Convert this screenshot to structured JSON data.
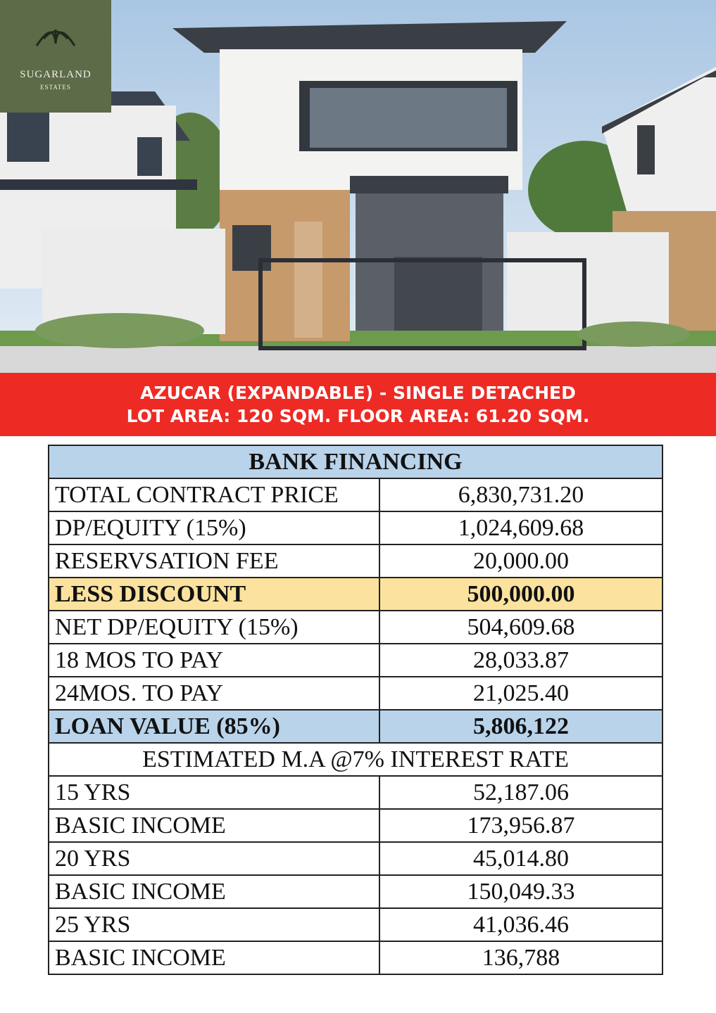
{
  "logo": {
    "name": "SUGARLAND",
    "tagline": "ESTATES"
  },
  "banner": {
    "line1": "AZUCAR (EXPANDABLE) - SINGLE DETACHED",
    "line2": "LOT AREA: 120 SQM. FLOOR AREA: 61.20 SQM."
  },
  "table": {
    "title": "BANK FINANCING",
    "rows": [
      [
        "TOTAL CONTRACT PRICE",
        "6,830,731.20"
      ],
      [
        "DP/EQUITY (15%)",
        "1,024,609.68"
      ],
      [
        "RESERVSATION FEE",
        "20,000.00"
      ],
      [
        "LESS DISCOUNT",
        "500,000.00"
      ],
      [
        "NET DP/EQUITY (15%)",
        "504,609.68"
      ],
      [
        "18 MOS TO PAY",
        "28,033.87"
      ],
      [
        "24MOS. TO PAY",
        "21,025.40"
      ],
      [
        "LOAN VALUE (85%)",
        "5,806,122"
      ]
    ],
    "subtitle": "ESTIMATED M.A @7% INTEREST RATE",
    "terms": [
      [
        "15 YRS",
        "52,187.06"
      ],
      [
        "BASIC INCOME",
        "173,956.87"
      ],
      [
        "20 YRS",
        "45,014.80"
      ],
      [
        "BASIC INCOME",
        "150,049.33"
      ],
      [
        "25 YRS",
        "41,036.46"
      ],
      [
        "BASIC INCOME",
        "136,788"
      ]
    ]
  }
}
